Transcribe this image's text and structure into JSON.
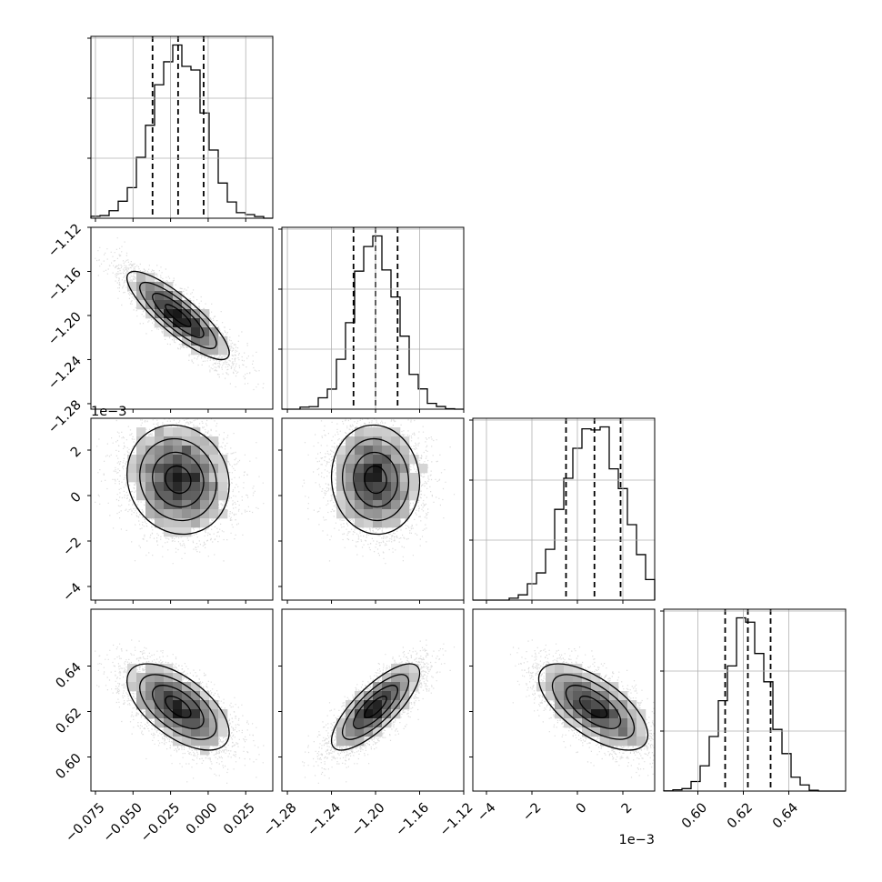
{
  "chart_data": {
    "type": "corner",
    "grid": true,
    "line_color": "#000000",
    "grid_color": "#b0b0b0",
    "scatter_color": "#9a9a9a",
    "variables": [
      {
        "range": [
          -0.078,
          0.043
        ],
        "ticks": [
          -0.075,
          -0.05,
          -0.025,
          0.0,
          0.025
        ],
        "tick_labels": [
          "−0.075",
          "−0.050",
          "−0.025",
          "0.000",
          "0.025"
        ],
        "mean": -0.02,
        "sd": 0.017,
        "quantiles": [
          -0.037,
          -0.02,
          -0.003
        ],
        "offset_text": ""
      },
      {
        "range": [
          -1.285,
          -1.12
        ],
        "ticks": [
          -1.28,
          -1.24,
          -1.2,
          -1.16,
          -1.12
        ],
        "tick_labels": [
          "−1.28",
          "−1.24",
          "−1.20",
          "−1.16",
          "−1.12"
        ],
        "mean": -1.2,
        "sd": 0.02,
        "quantiles": [
          -1.22,
          -1.2,
          -1.18
        ],
        "offset_text": ""
      },
      {
        "range": [
          -4.6,
          3.4
        ],
        "ticks": [
          -4,
          -2,
          0,
          2
        ],
        "tick_labels": [
          "−4",
          "−2",
          "0",
          "2"
        ],
        "mean": 0.7,
        "sd": 1.2,
        "quantiles": [
          -0.5,
          0.75,
          1.9
        ],
        "offset_text": "1e−3"
      },
      {
        "range": [
          0.585,
          0.665
        ],
        "ticks": [
          0.6,
          0.62,
          0.64
        ],
        "tick_labels": [
          "0.60",
          "0.62",
          "0.64"
        ],
        "mean": 0.622,
        "sd": 0.0095,
        "quantiles": [
          0.612,
          0.622,
          0.632
        ],
        "offset_text": ""
      }
    ],
    "correlations": [
      [
        1.0,
        -0.85,
        -0.1,
        -0.6
      ],
      [
        -0.85,
        1.0,
        -0.05,
        0.78
      ],
      [
        -0.1,
        -0.05,
        1.0,
        -0.65
      ],
      [
        -0.6,
        0.78,
        -0.65,
        1.0
      ]
    ]
  }
}
